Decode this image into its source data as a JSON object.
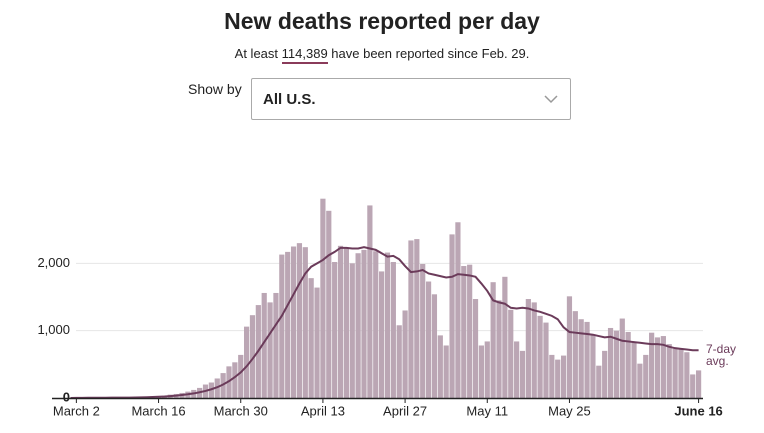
{
  "chart_data": {
    "type": "bar",
    "title": "New deaths reported per day",
    "subtitle": {
      "before": "At least",
      "number": "114,389",
      "after": "have been reported since Feb. 29."
    },
    "control": {
      "label": "Show by",
      "selected": "All U.S."
    },
    "categories": [
      null,
      "March 2",
      null,
      null,
      null,
      null,
      null,
      null,
      null,
      null,
      null,
      null,
      null,
      null,
      null,
      "March 16",
      null,
      null,
      null,
      null,
      null,
      null,
      null,
      null,
      null,
      null,
      null,
      null,
      null,
      "March 30",
      null,
      null,
      null,
      null,
      null,
      null,
      null,
      null,
      null,
      null,
      null,
      null,
      null,
      "April 13",
      null,
      null,
      null,
      null,
      null,
      null,
      null,
      null,
      null,
      null,
      null,
      null,
      null,
      "April 27",
      null,
      null,
      null,
      null,
      null,
      null,
      null,
      null,
      null,
      null,
      null,
      null,
      null,
      "May 11",
      null,
      null,
      null,
      null,
      null,
      null,
      null,
      null,
      null,
      null,
      null,
      null,
      null,
      "May 25",
      null,
      null,
      null,
      null,
      null,
      null,
      null,
      null,
      null,
      null,
      null,
      null,
      null,
      null,
      null,
      null,
      null,
      null,
      null,
      null,
      null,
      "June 16"
    ],
    "series": [
      {
        "color": "#bba6b4",
        "values": [
          1,
          2,
          3,
          5,
          3,
          4,
          5,
          6,
          4,
          8,
          10,
          12,
          15,
          18,
          25,
          30,
          35,
          50,
          60,
          75,
          95,
          120,
          150,
          200,
          230,
          290,
          370,
          470,
          530,
          640,
          1060,
          1230,
          1380,
          1560,
          1420,
          1560,
          2130,
          2170,
          2250,
          2300,
          2240,
          1780,
          1640,
          2960,
          2780,
          2020,
          2260,
          2230,
          2000,
          2150,
          2200,
          2860,
          2180,
          1880,
          2160,
          2020,
          1080,
          1300,
          2340,
          2360,
          1990,
          1730,
          1540,
          930,
          780,
          2430,
          2610,
          1960,
          1980,
          1470,
          780,
          840,
          1720,
          1450,
          1800,
          1310,
          840,
          700,
          1470,
          1420,
          1220,
          1120,
          640,
          570,
          630,
          1510,
          1290,
          1170,
          1130,
          940,
          480,
          700,
          1040,
          1000,
          1180,
          980,
          830,
          510,
          640,
          970,
          900,
          920,
          800,
          730,
          720,
          680,
          350,
          410
        ]
      },
      {
        "name": "7-day avg.",
        "type": "line",
        "color": "#6b3b5a",
        "values": [
          0,
          1,
          2,
          3,
          3,
          4,
          4,
          5,
          5,
          5,
          6,
          8,
          10,
          12,
          15,
          18,
          22,
          28,
          35,
          45,
          55,
          68,
          85,
          105,
          130,
          160,
          200,
          250,
          310,
          380,
          470,
          580,
          700,
          830,
          960,
          1090,
          1220,
          1380,
          1540,
          1700,
          1850,
          1950,
          2000,
          2050,
          2120,
          2170,
          2230,
          2230,
          2220,
          2220,
          2240,
          2220,
          2200,
          2150,
          2100,
          2110,
          2060,
          1960,
          1870,
          1880,
          1900,
          1850,
          1830,
          1810,
          1790,
          1800,
          1840,
          1830,
          1820,
          1800,
          1700,
          1590,
          1450,
          1420,
          1400,
          1340,
          1330,
          1340,
          1330,
          1300,
          1280,
          1250,
          1220,
          1170,
          1050,
          980,
          970,
          960,
          950,
          940,
          920,
          900,
          910,
          880,
          850,
          840,
          830,
          820,
          810,
          800,
          800,
          790,
          760,
          740,
          730,
          720,
          710,
          710
        ]
      }
    ],
    "ylim": [
      0,
      3000
    ],
    "yticks": [
      0,
      {
        "value": 1000,
        "label": "1,000"
      },
      {
        "value": 2000,
        "label": "2,000"
      }
    ],
    "grid": true
  }
}
